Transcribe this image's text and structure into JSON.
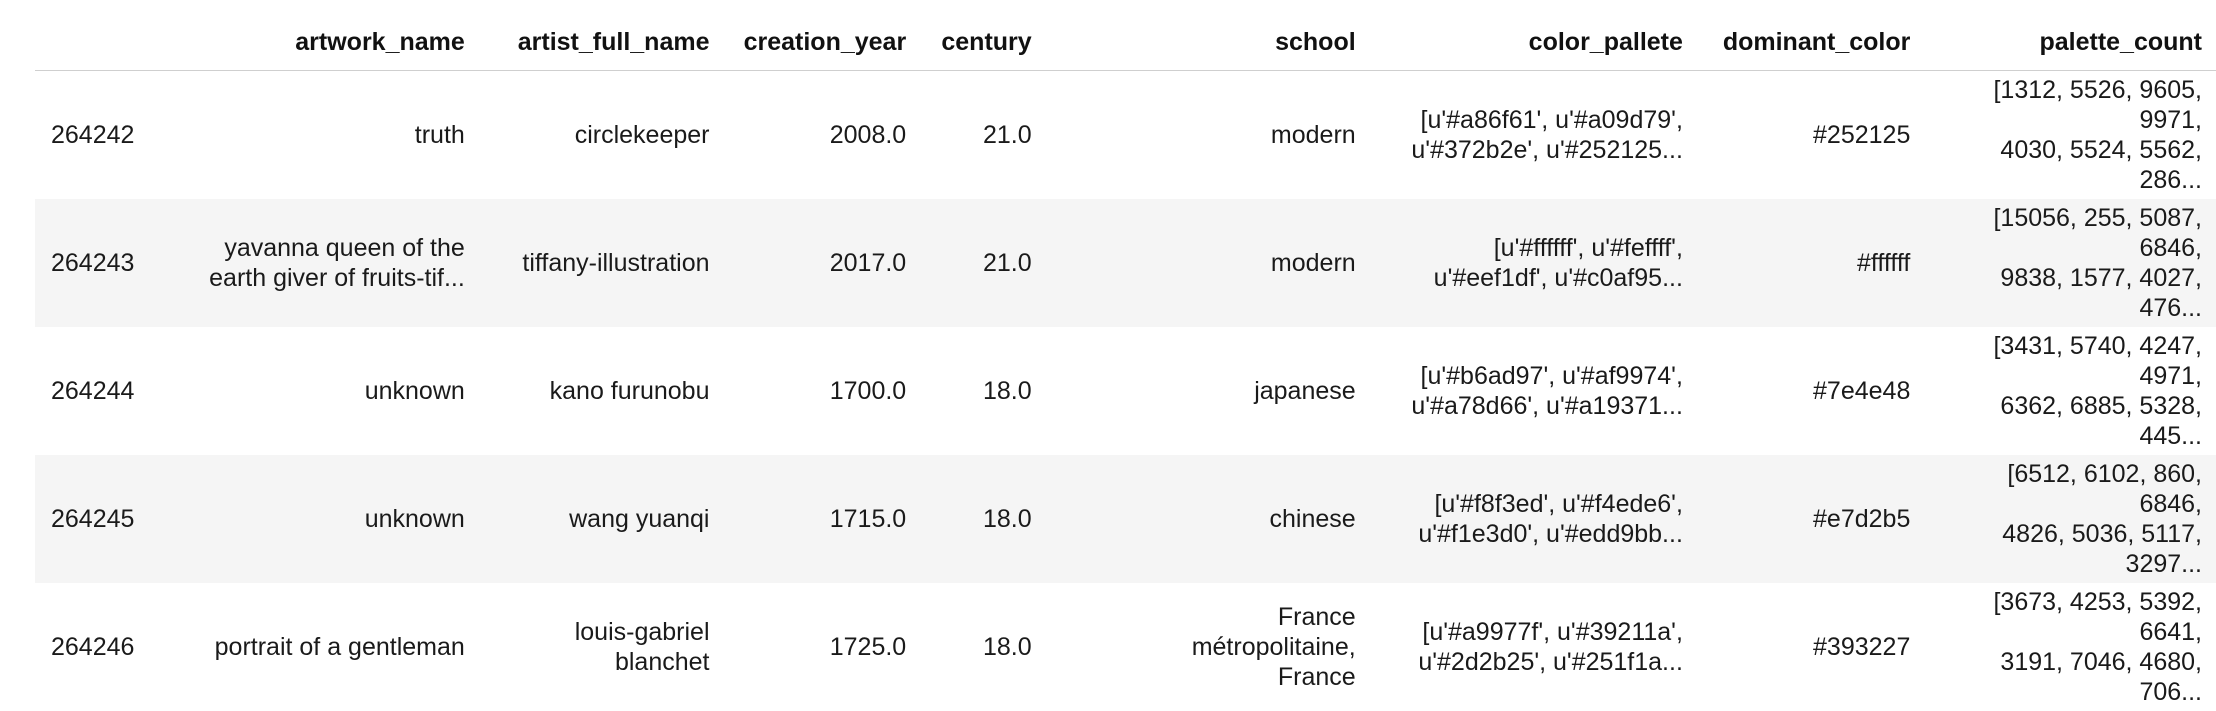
{
  "columns": [
    "",
    "artwork_name",
    "artist_full_name",
    "creation_year",
    "century",
    "school",
    "color_pallete",
    "dominant_color",
    "palette_count"
  ],
  "rows": [
    {
      "index": "264242",
      "artwork_name": [
        "truth"
      ],
      "artist_full_name": [
        "circlekeeper"
      ],
      "creation_year": "2008.0",
      "century": "21.0",
      "school": [
        "modern"
      ],
      "color_pallete": [
        "[u'#a86f61', u'#a09d79',",
        "u'#372b2e', u'#252125..."
      ],
      "dominant_color": "#252125",
      "palette_count": [
        "[1312, 5526, 9605, 9971,",
        "4030, 5524, 5562, 286..."
      ]
    },
    {
      "index": "264243",
      "artwork_name": [
        "yavanna queen of the",
        "earth giver of fruits-tif..."
      ],
      "artist_full_name": [
        "tiffany-illustration"
      ],
      "creation_year": "2017.0",
      "century": "21.0",
      "school": [
        "modern"
      ],
      "color_pallete": [
        "[u'#ffffff', u'#feffff',",
        "u'#eef1df', u'#c0af95..."
      ],
      "dominant_color": "#ffffff",
      "palette_count": [
        "[15056, 255, 5087, 6846,",
        "9838, 1577, 4027, 476..."
      ]
    },
    {
      "index": "264244",
      "artwork_name": [
        "unknown"
      ],
      "artist_full_name": [
        "kano furunobu"
      ],
      "creation_year": "1700.0",
      "century": "18.0",
      "school": [
        "japanese"
      ],
      "color_pallete": [
        "[u'#b6ad97', u'#af9974',",
        "u'#a78d66', u'#a19371..."
      ],
      "dominant_color": "#7e4e48",
      "palette_count": [
        "[3431, 5740, 4247, 4971,",
        "6362, 6885, 5328, 445..."
      ]
    },
    {
      "index": "264245",
      "artwork_name": [
        "unknown"
      ],
      "artist_full_name": [
        "wang yuanqi"
      ],
      "creation_year": "1715.0",
      "century": "18.0",
      "school": [
        "chinese"
      ],
      "color_pallete": [
        "[u'#f8f3ed', u'#f4ede6',",
        "u'#f1e3d0', u'#edd9bb..."
      ],
      "dominant_color": "#e7d2b5",
      "palette_count": [
        "[6512, 6102, 860, 6846,",
        "4826, 5036, 5117, 3297..."
      ]
    },
    {
      "index": "264246",
      "artwork_name": [
        "portrait of a gentleman"
      ],
      "artist_full_name": [
        "louis-gabriel",
        "blanchet"
      ],
      "creation_year": "1725.0",
      "century": "18.0",
      "school": [
        "France",
        "métropolitaine,",
        "France"
      ],
      "color_pallete": [
        "[u'#a9977f', u'#39211a',",
        "u'#2d2b25', u'#251f1a..."
      ],
      "dominant_color": "#393227",
      "palette_count": [
        "[3673, 4253, 5392, 6641,",
        "3191, 7046, 4680, 706..."
      ]
    }
  ]
}
